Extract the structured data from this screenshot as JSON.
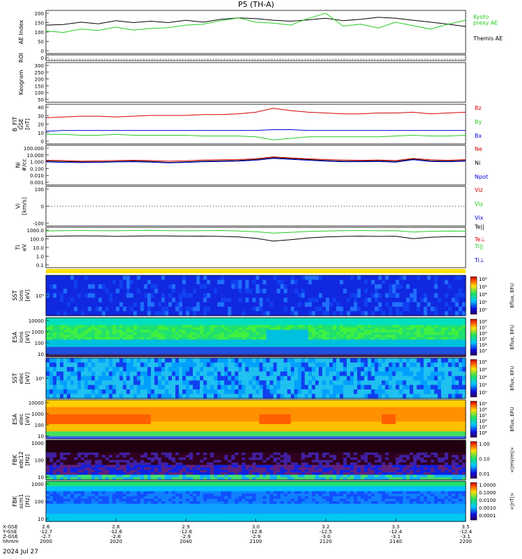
{
  "title": "P5 (TH-A)",
  "date_label": "2024 Jul 27",
  "colors": {
    "black": "#000000",
    "red": "#d40000",
    "green": "#22cc22",
    "blue": "#0000d0",
    "yellow": "#ffe000"
  },
  "x_axis": {
    "row_labels": [
      "X-GSE",
      "Y-GSE",
      "Z-GSE",
      "hhmm"
    ],
    "ticks": [
      {
        "hhmm": "2000",
        "x": "2.6",
        "y": "-12.7",
        "z": "-2.7"
      },
      {
        "hhmm": "2020",
        "x": "2.8",
        "y": "-12.6",
        "z": "-2.8"
      },
      {
        "hhmm": "2040",
        "x": "2.9",
        "y": "-12.6",
        "z": "-2.9"
      },
      {
        "hhmm": "2100",
        "x": "3.0",
        "y": "-12.6",
        "z": "-2.9"
      },
      {
        "hhmm": "2120",
        "x": "3.2",
        "y": "-12.5",
        "z": "-3.0"
      },
      {
        "hhmm": "2140",
        "x": "3.3",
        "y": "-12.4",
        "z": "-3.1"
      },
      {
        "hhmm": "2200",
        "x": "3.5",
        "y": "-12.4",
        "z": "-3.1"
      }
    ]
  },
  "panels": {
    "ae": {
      "ylabel": "AE Index",
      "legend": [
        {
          "text": "Kyoto\nprexy AE",
          "color": "green"
        },
        {
          "text": "Themis AE",
          "color": "black"
        }
      ]
    },
    "roi": {
      "ylabel": "ROI"
    },
    "keogram": {
      "ylabel": "Keogram"
    },
    "bfit": {
      "ylabel": "B_FIT\nGSE\n[nT]",
      "legend": [
        "Bz",
        "By",
        "Bx"
      ]
    },
    "ni": {
      "ylabel": "Ni\n#/cc",
      "legend": [
        "Ne",
        "Ni",
        "Npot"
      ]
    },
    "vi": {
      "ylabel": "Vi\n[km/s]",
      "legend": [
        "Viz",
        "Viy",
        "Vix"
      ]
    },
    "ti": {
      "ylabel": "Ti\neV",
      "legend": [
        "Te||",
        "Te⊥",
        "Ti||",
        "Ti⊥"
      ]
    },
    "sst_i": {
      "ylabel": "SST\nions\n[eV]",
      "cbar": "Eflux, EFU"
    },
    "esa_i": {
      "ylabel": "ESA\nions\n[eV]",
      "cbar": "Eflux, EFU"
    },
    "sst_e": {
      "ylabel": "SST\nelec\n[eV]",
      "cbar": "Eflux, EFU"
    },
    "esa_e": {
      "ylabel": "ESA\nelec\n[eV]",
      "cbar": "Eflux, EFU"
    },
    "fbk_e": {
      "ylabel": "FBK\nedc12\n[Hz]",
      "cbar": "<|mV/m|>"
    },
    "fbk_b": {
      "ylabel": "FBK\nscm1\n[Hz]",
      "cbar": "<|nT|>"
    }
  },
  "chart_data": [
    {
      "type": "line",
      "panel": "ae",
      "ylabel": "AE Index",
      "ylim": [
        -20,
        200
      ],
      "yticks": [
        "0",
        "50",
        "100",
        "150",
        "200"
      ],
      "x": [
        0,
        5,
        10,
        15,
        20,
        25,
        30,
        35,
        40,
        45,
        50,
        55,
        60,
        65,
        70,
        75,
        80,
        85,
        90,
        95,
        100,
        105,
        110,
        115,
        120
      ],
      "series": [
        {
          "name": "Themis AE",
          "color": "black",
          "values": [
            125,
            128,
            140,
            132,
            148,
            138,
            145,
            138,
            150,
            140,
            155,
            162,
            158,
            150,
            145,
            152,
            160,
            148,
            155,
            165,
            160,
            150,
            140,
            130,
            118
          ]
        },
        {
          "name": "Kyoto\nprexy AE",
          "color": "green",
          "values": [
            95,
            88,
            105,
            98,
            115,
            100,
            108,
            112,
            125,
            130,
            148,
            162,
            140,
            135,
            125,
            160,
            185,
            120,
            130,
            110,
            140,
            122,
            105,
            130,
            150
          ]
        }
      ]
    },
    {
      "type": "scatter",
      "panel": "roi",
      "ylabel": "ROI",
      "ylim": [
        0,
        1
      ],
      "yticks": [
        "0"
      ]
    },
    {
      "type": "heatmap",
      "panel": "keogram",
      "ylabel": "Keogram",
      "ylim": [
        50,
        300
      ],
      "yticks": [
        "50",
        "100",
        "150",
        "200",
        "250",
        "300"
      ]
    },
    {
      "type": "line",
      "panel": "bfit",
      "ylabel": "B_FIT\nGSE\n[nT]",
      "ylim": [
        -5,
        45
      ],
      "yticks": [
        "0",
        "10",
        "20",
        "30",
        "40"
      ],
      "x": [
        0,
        5,
        10,
        15,
        20,
        25,
        30,
        35,
        40,
        45,
        50,
        55,
        60,
        65,
        70,
        75,
        80,
        85,
        90,
        95,
        100,
        105,
        110,
        115,
        120
      ],
      "series": [
        {
          "name": "Bz",
          "color": "red",
          "values": [
            28,
            29,
            30,
            30,
            29,
            30,
            31,
            31,
            31,
            32,
            32,
            33,
            35,
            40,
            37,
            35,
            34,
            33,
            33,
            34,
            34,
            35,
            33,
            34,
            35
          ]
        },
        {
          "name": "By",
          "color": "green",
          "values": [
            7,
            7,
            6,
            6,
            7,
            6,
            6,
            6,
            6,
            5,
            5,
            5,
            4,
            0,
            2,
            4,
            4,
            4,
            4,
            4,
            5,
            6,
            5,
            5,
            6
          ]
        },
        {
          "name": "Bx",
          "color": "blue",
          "values": [
            11,
            12,
            12,
            12,
            12,
            12,
            12,
            12,
            12,
            12,
            12,
            12,
            12,
            13,
            13,
            12,
            12,
            12,
            12,
            12,
            12,
            12,
            12,
            12,
            12
          ]
        }
      ]
    },
    {
      "type": "line",
      "panel": "ni",
      "ylabel": "Ni\n#/cc",
      "scale": "log",
      "ylim": [
        0.001,
        100
      ],
      "yticks": [
        "100.000",
        "10.000",
        "1.000",
        "0.100",
        "0.010",
        "0.001"
      ],
      "x": [
        0,
        5,
        10,
        15,
        20,
        25,
        30,
        35,
        40,
        45,
        50,
        55,
        60,
        65,
        70,
        75,
        80,
        85,
        90,
        95,
        100,
        105,
        110,
        115,
        120
      ],
      "series": [
        {
          "name": "Ne",
          "color": "red",
          "values": [
            1.3,
            1.2,
            1.0,
            1.1,
            1.2,
            1.3,
            1.2,
            1.0,
            1.1,
            1.4,
            1.5,
            1.6,
            2.0,
            3.5,
            2.6,
            2.0,
            1.6,
            1.4,
            1.3,
            1.4,
            1.2,
            2.2,
            1.5,
            1.3,
            1.6
          ]
        },
        {
          "name": "Ni",
          "color": "black",
          "values": [
            1.0,
            0.9,
            0.8,
            0.8,
            0.9,
            1.0,
            0.9,
            0.7,
            0.8,
            1.0,
            1.1,
            1.2,
            1.6,
            2.8,
            2.1,
            1.6,
            1.2,
            1.0,
            1.0,
            1.1,
            0.9,
            1.8,
            1.1,
            1.0,
            1.2
          ]
        },
        {
          "name": "Npot",
          "color": "blue",
          "values": [
            0.8,
            0.7,
            0.65,
            0.7,
            0.8,
            0.85,
            0.75,
            0.6,
            0.7,
            0.85,
            0.9,
            1.0,
            1.3,
            2.2,
            1.7,
            1.3,
            1.0,
            0.85,
            0.85,
            0.9,
            0.75,
            1.5,
            0.9,
            0.85,
            1.0
          ]
        }
      ]
    },
    {
      "type": "line",
      "panel": "vi",
      "ylabel": "Vi\n[km/s]",
      "ylim": [
        -150,
        150
      ],
      "yticks": [
        "100",
        "0",
        "-100"
      ]
    },
    {
      "type": "line",
      "panel": "ti",
      "ylabel": "Ti\neV",
      "scale": "log",
      "ylim": [
        0.1,
        3000
      ],
      "yticks": [
        "1000.0",
        "100.0",
        "10.0",
        "1.0",
        "0.1"
      ],
      "x": [
        0,
        5,
        10,
        15,
        20,
        25,
        30,
        35,
        40,
        45,
        50,
        55,
        60,
        65,
        70,
        75,
        80,
        85,
        90,
        95,
        100,
        105,
        110,
        115,
        120
      ],
      "series": [
        {
          "name": "Ti||",
          "color": "green",
          "values": [
            1200,
            1300,
            1350,
            1300,
            1250,
            1350,
            1400,
            1300,
            1250,
            1300,
            1350,
            1200,
            1000,
            700,
            850,
            1050,
            1200,
            1300,
            1350,
            1250,
            1300,
            900,
            1100,
            1200,
            1150
          ]
        },
        {
          "name": "Te||",
          "color": "black",
          "values": [
            300,
            320,
            340,
            330,
            300,
            320,
            340,
            330,
            310,
            320,
            300,
            260,
            180,
            90,
            130,
            200,
            260,
            300,
            320,
            300,
            310,
            170,
            240,
            280,
            270
          ]
        }
      ]
    },
    {
      "type": "heatmap",
      "panel": "sst_i",
      "ylabel": "SST\nions\n[eV]",
      "yticks": [
        "10⁵"
      ],
      "cbar_ticks": [
        "10⁸",
        "10⁶",
        "10⁴",
        "10²",
        "10⁰"
      ]
    },
    {
      "type": "heatmap",
      "panel": "esa_i",
      "ylabel": "ESA\nions\n[eV]",
      "yticks": [
        "10000",
        "1000",
        "100",
        "10"
      ],
      "cbar_ticks": [
        "10⁸",
        "10⁷",
        "10⁶",
        "10⁵",
        "10⁴",
        "10³"
      ]
    },
    {
      "type": "heatmap",
      "panel": "sst_e",
      "ylabel": "SST\nelec\n[eV]",
      "yticks": [
        "10⁵"
      ],
      "cbar_ticks": [
        "10⁸",
        "10⁶",
        "10⁴",
        "10²",
        "10⁰"
      ]
    },
    {
      "type": "heatmap",
      "panel": "esa_e",
      "ylabel": "ESA\nelec\n[eV]",
      "yticks": [
        "10000",
        "1000",
        "100",
        "10"
      ],
      "cbar_ticks": [
        "10⁹",
        "10⁸",
        "10⁷",
        "10⁶",
        "10⁵",
        "10⁴"
      ]
    },
    {
      "type": "heatmap",
      "panel": "fbk_e",
      "ylabel": "FBK\nedc12\n[Hz]",
      "yticks": [
        "1000",
        "100",
        "10"
      ],
      "cbar_ticks": [
        "1.00",
        "0.10",
        "0.01"
      ]
    },
    {
      "type": "heatmap",
      "panel": "fbk_b",
      "ylabel": "FBK\nscm1\n[Hz]",
      "yticks": [
        "1000",
        "100",
        "10"
      ],
      "cbar_ticks": [
        "1.0000",
        "0.1000",
        "0.0100",
        "0.0010",
        "0.0001"
      ]
    }
  ]
}
